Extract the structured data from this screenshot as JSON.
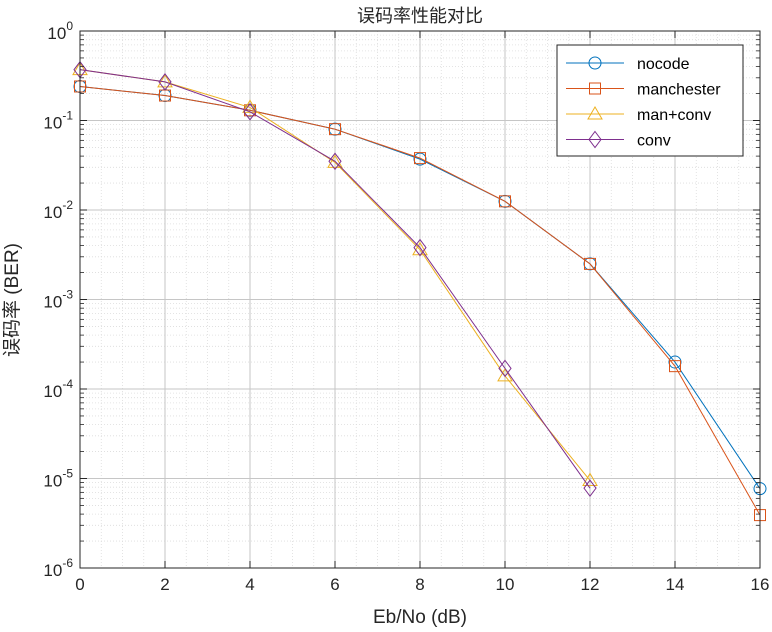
{
  "chart_data": {
    "type": "line",
    "title": "误码率性能对比",
    "xlabel": "Eb/No (dB)",
    "ylabel": "误码率 (BER)",
    "xlim": [
      0,
      16
    ],
    "ylim": [
      1e-06,
      1
    ],
    "yscale": "log",
    "grid": true,
    "minor_grid": true,
    "legend_position": "top-right",
    "x_ticks": [
      0,
      2,
      4,
      6,
      8,
      10,
      12,
      14,
      16
    ],
    "x_tick_labels": [
      "0",
      "2",
      "4",
      "6",
      "8",
      "10",
      "12",
      "14",
      "16"
    ],
    "y_ticks": [
      {
        "value": 1e-06,
        "base": "10",
        "exp": "-6"
      },
      {
        "value": 1e-05,
        "base": "10",
        "exp": "-5"
      },
      {
        "value": 0.0001,
        "base": "10",
        "exp": "-4"
      },
      {
        "value": 0.001,
        "base": "10",
        "exp": "-3"
      },
      {
        "value": 0.01,
        "base": "10",
        "exp": "-2"
      },
      {
        "value": 0.1,
        "base": "10",
        "exp": "-1"
      },
      {
        "value": 1,
        "base": "10",
        "exp": "0"
      }
    ],
    "series": [
      {
        "name": "nocode",
        "color": "#0072BD",
        "marker": "circle",
        "x": [
          0,
          2,
          4,
          6,
          8,
          10,
          12,
          14,
          16
        ],
        "y": [
          0.24,
          0.19,
          0.13,
          0.08,
          0.037,
          0.0125,
          0.0025,
          0.0002,
          7.7e-06
        ]
      },
      {
        "name": "manchester",
        "color": "#D95319",
        "marker": "square",
        "x": [
          0,
          2,
          4,
          6,
          8,
          10,
          12,
          14,
          16
        ],
        "y": [
          0.24,
          0.19,
          0.13,
          0.08,
          0.038,
          0.0125,
          0.0025,
          0.00018,
          3.9e-06
        ]
      },
      {
        "name": "man+conv",
        "color": "#EDB120",
        "marker": "triangle",
        "x": [
          0,
          2,
          4,
          6,
          8,
          10,
          12
        ],
        "y": [
          0.37,
          0.27,
          0.14,
          0.034,
          0.0036,
          0.00014,
          9.5e-06
        ]
      },
      {
        "name": "conv",
        "color": "#7E2F8E",
        "marker": "diamond",
        "x": [
          0,
          2,
          4,
          6,
          8,
          10,
          12
        ],
        "y": [
          0.37,
          0.27,
          0.125,
          0.035,
          0.0038,
          0.00017,
          7.8e-06
        ]
      }
    ]
  }
}
